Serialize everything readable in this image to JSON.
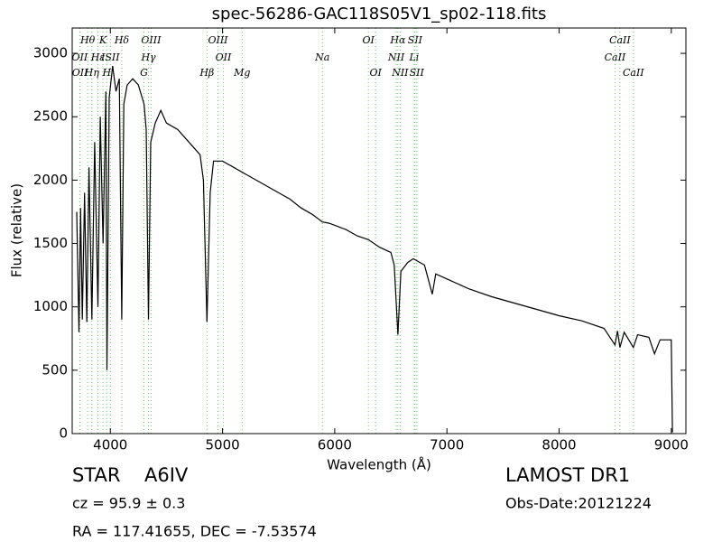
{
  "chart_data": {
    "type": "line",
    "title": "spec-56286-GAC118S05V1_sp02-118.fits",
    "x_label": "Wavelength (Å)",
    "y_label": "Flux (relative)",
    "xlim": [
      3660,
      9130
    ],
    "ylim": [
      0,
      3200
    ],
    "xticks": [
      4000,
      5000,
      6000,
      7000,
      8000,
      9000
    ],
    "yticks": [
      0,
      500,
      1000,
      1500,
      2000,
      2500,
      3000
    ],
    "color": "#000000",
    "line_color": "#66cc66",
    "x": [
      3700,
      3720,
      3735,
      3750,
      3770,
      3790,
      3810,
      3835,
      3860,
      3889,
      3910,
      3935,
      3960,
      3970,
      3990,
      4020,
      4050,
      4080,
      4102,
      4120,
      4150,
      4200,
      4250,
      4300,
      4320,
      4340,
      4360,
      4400,
      4450,
      4500,
      4600,
      4700,
      4800,
      4830,
      4861,
      4890,
      4920,
      5000,
      5100,
      5200,
      5300,
      5400,
      5500,
      5600,
      5700,
      5800,
      5890,
      5950,
      6100,
      6200,
      6300,
      6400,
      6500,
      6530,
      6563,
      6590,
      6650,
      6700,
      6800,
      6870,
      6900,
      7000,
      7200,
      7400,
      7600,
      7800,
      8000,
      8200,
      8400,
      8498,
      8520,
      8542,
      8580,
      8662,
      8700,
      8800,
      8850,
      8900,
      8970,
      9000,
      9010
    ],
    "values": [
      1750,
      800,
      1780,
      900,
      1900,
      880,
      2100,
      900,
      2300,
      1000,
      2500,
      1500,
      2700,
      500,
      2650,
      2900,
      2700,
      2800,
      900,
      2600,
      2750,
      2800,
      2750,
      2600,
      2400,
      900,
      2300,
      2450,
      2550,
      2450,
      2400,
      2300,
      2200,
      2000,
      880,
      1900,
      2150,
      2150,
      2100,
      2050,
      2000,
      1950,
      1900,
      1850,
      1780,
      1730,
      1670,
      1660,
      1610,
      1560,
      1530,
      1470,
      1430,
      1330,
      780,
      1280,
      1350,
      1380,
      1330,
      1100,
      1260,
      1220,
      1140,
      1080,
      1030,
      980,
      930,
      890,
      830,
      700,
      810,
      680,
      800,
      680,
      780,
      760,
      630,
      740,
      740,
      740,
      10
    ],
    "spectral_lines": [
      [
        {
          "label": "Hθ",
          "wavelength": 3798
        },
        {
          "label": "K",
          "wavelength": 3934
        },
        {
          "label": "Hδ",
          "wavelength": 4102
        },
        {
          "label": "OIII",
          "wavelength": 4363
        },
        {
          "label": "OIII",
          "wavelength": 4959
        },
        {
          "label": "OI",
          "wavelength": 6300
        },
        {
          "label": "Hα",
          "wavelength": 6563
        },
        {
          "label": "SII",
          "wavelength": 6716
        },
        {
          "label": "CaII",
          "wavelength": 8542
        }
      ],
      [
        {
          "label": "OII",
          "wavelength": 3727
        },
        {
          "label": "Hε",
          "wavelength": 3889
        },
        {
          "label": "ISII",
          "wavelength": 4000
        },
        {
          "label": "Hγ",
          "wavelength": 4340
        },
        {
          "label": "OII",
          "wavelength": 5007
        },
        {
          "label": "Na",
          "wavelength": 5890
        },
        {
          "label": "NII",
          "wavelength": 6548
        },
        {
          "label": "Li",
          "wavelength": 6708
        },
        {
          "label": "CaII",
          "wavelength": 8498
        }
      ],
      [
        {
          "label": "OII",
          "wavelength": 3729
        },
        {
          "label": "Hη",
          "wavelength": 3835
        },
        {
          "label": "H",
          "wavelength": 3968
        },
        {
          "label": "G",
          "wavelength": 4300
        },
        {
          "label": "Hβ",
          "wavelength": 4861
        },
        {
          "label": "Mg",
          "wavelength": 5175
        },
        {
          "label": "OI",
          "wavelength": 6364
        },
        {
          "label": "NII",
          "wavelength": 6583
        },
        {
          "label": "SII",
          "wavelength": 6731
        },
        {
          "label": "CaII",
          "wavelength": 8662
        }
      ]
    ],
    "object_class": "STAR",
    "subclass": "A6IV",
    "redshift": "cz = 95.9 ± 0.3",
    "coordinates": "RA = 117.41655, DEC = -7.53574",
    "survey": "LAMOST DR1",
    "obs_date": "Obs-Date:20121224"
  }
}
